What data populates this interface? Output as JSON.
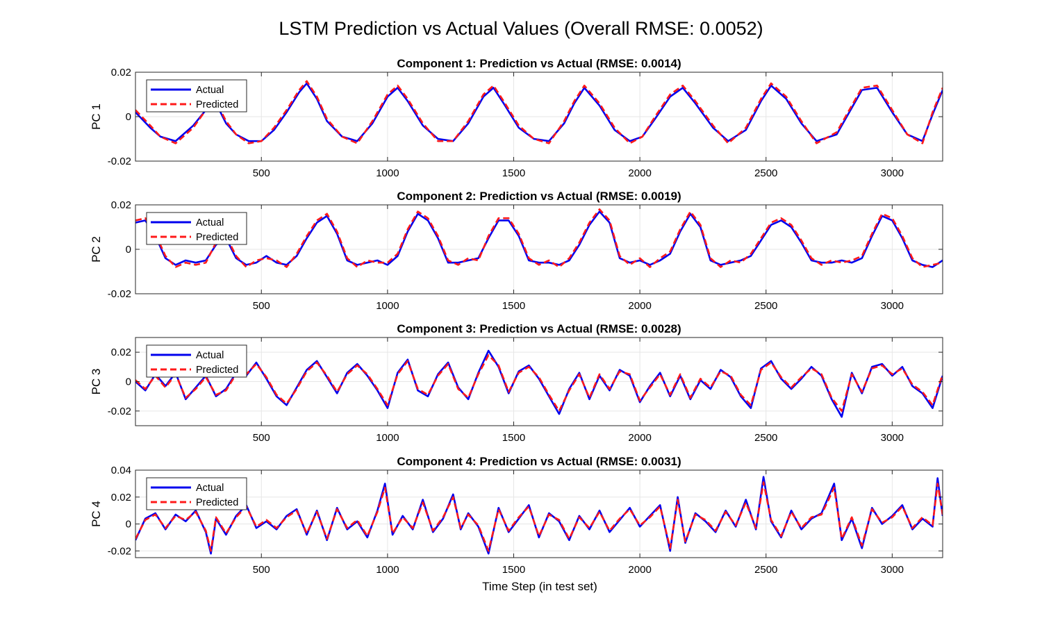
{
  "figure": {
    "title": "LSTM Prediction vs Actual Values (Overall RMSE: 0.0052)",
    "xlabel": "Time Step (in test set)"
  },
  "colors": {
    "actual": "#0000ee",
    "predicted": "#ff1a1a",
    "grid": "#e6e6e6",
    "axes": "#262626"
  },
  "chart_data": [
    {
      "type": "line",
      "title": "Component 1: Prediction vs Actual (RMSE: 0.0014)",
      "ylabel": "PC 1",
      "xlim": [
        1,
        3200
      ],
      "ylim": [
        -0.02,
        0.02
      ],
      "xticks": [
        500,
        1000,
        1500,
        2000,
        2500,
        3000
      ],
      "xtick_labels": [
        "500",
        "1000",
        "1500",
        "2000",
        "2500",
        "3000"
      ],
      "yticks": [
        -0.02,
        0,
        0.02
      ],
      "ytick_labels": [
        "-0.02",
        "0",
        "0.02"
      ],
      "grid": true,
      "legend": "top-left",
      "x": [
        1,
        60,
        100,
        160,
        230,
        280,
        320,
        360,
        400,
        450,
        500,
        550,
        600,
        650,
        680,
        720,
        760,
        820,
        880,
        940,
        1000,
        1040,
        1080,
        1140,
        1200,
        1260,
        1320,
        1380,
        1420,
        1460,
        1520,
        1580,
        1640,
        1700,
        1740,
        1780,
        1840,
        1900,
        1960,
        2010,
        2060,
        2120,
        2170,
        2220,
        2290,
        2350,
        2420,
        2480,
        2520,
        2580,
        2640,
        2700,
        2780,
        2840,
        2880,
        2940,
        3000,
        3060,
        3120,
        3160,
        3200
      ],
      "series": [
        {
          "name": "Actual",
          "values": [
            0.002,
            -0.005,
            -0.009,
            -0.011,
            -0.004,
            0.003,
            0.006,
            -0.003,
            -0.008,
            -0.011,
            -0.011,
            -0.006,
            0.002,
            0.011,
            0.015,
            0.008,
            -0.002,
            -0.009,
            -0.011,
            -0.003,
            0.009,
            0.013,
            0.007,
            -0.004,
            -0.01,
            -0.011,
            -0.003,
            0.009,
            0.013,
            0.006,
            -0.005,
            -0.01,
            -0.011,
            -0.003,
            0.006,
            0.013,
            0.005,
            -0.006,
            -0.011,
            -0.009,
            -0.001,
            0.009,
            0.013,
            0.006,
            -0.005,
            -0.011,
            -0.006,
            0.007,
            0.014,
            0.008,
            -0.003,
            -0.011,
            -0.008,
            0.004,
            0.012,
            0.013,
            0.002,
            -0.008,
            -0.011,
            0.001,
            0.012
          ]
        },
        {
          "name": "Predicted",
          "values": [
            0.003,
            -0.004,
            -0.009,
            -0.012,
            -0.005,
            0.003,
            0.007,
            -0.002,
            -0.008,
            -0.012,
            -0.011,
            -0.005,
            0.003,
            0.012,
            0.016,
            0.009,
            -0.001,
            -0.009,
            -0.012,
            -0.002,
            0.01,
            0.014,
            0.008,
            -0.003,
            -0.011,
            -0.011,
            -0.002,
            0.01,
            0.014,
            0.007,
            -0.004,
            -0.01,
            -0.012,
            -0.002,
            0.007,
            0.014,
            0.006,
            -0.005,
            -0.012,
            -0.009,
            0.0,
            0.01,
            0.014,
            0.007,
            -0.004,
            -0.012,
            -0.005,
            0.008,
            0.015,
            0.009,
            -0.002,
            -0.012,
            -0.007,
            0.005,
            0.013,
            0.014,
            0.003,
            -0.008,
            -0.012,
            0.002,
            0.013
          ]
        }
      ]
    },
    {
      "type": "line",
      "title": "Component 2: Prediction vs Actual (RMSE: 0.0019)",
      "ylabel": "PC 2",
      "xlim": [
        1,
        3200
      ],
      "ylim": [
        -0.02,
        0.02
      ],
      "xticks": [
        500,
        1000,
        1500,
        2000,
        2500,
        3000
      ],
      "xtick_labels": [
        "500",
        "1000",
        "1500",
        "2000",
        "2500",
        "3000"
      ],
      "yticks": [
        -0.02,
        0,
        0.02
      ],
      "ytick_labels": [
        "-0.02",
        "0",
        "0.02"
      ],
      "grid": true,
      "legend": "top-left",
      "x": [
        1,
        40,
        80,
        120,
        160,
        200,
        240,
        280,
        320,
        360,
        400,
        440,
        480,
        520,
        560,
        600,
        640,
        680,
        720,
        760,
        800,
        840,
        880,
        920,
        960,
        1000,
        1040,
        1080,
        1120,
        1160,
        1200,
        1240,
        1280,
        1320,
        1360,
        1400,
        1440,
        1480,
        1520,
        1560,
        1600,
        1640,
        1680,
        1720,
        1760,
        1800,
        1840,
        1880,
        1920,
        1960,
        2000,
        2040,
        2080,
        2120,
        2160,
        2200,
        2240,
        2280,
        2320,
        2360,
        2400,
        2440,
        2480,
        2520,
        2560,
        2600,
        2640,
        2680,
        2720,
        2760,
        2800,
        2840,
        2880,
        2920,
        2960,
        3000,
        3040,
        3080,
        3120,
        3160,
        3200
      ],
      "series": [
        {
          "name": "Actual",
          "values": [
            0.012,
            0.013,
            0.006,
            -0.004,
            -0.007,
            -0.005,
            -0.006,
            -0.005,
            0.002,
            0.005,
            -0.004,
            -0.007,
            -0.006,
            -0.003,
            -0.006,
            -0.007,
            -0.003,
            0.005,
            0.012,
            0.015,
            0.007,
            -0.005,
            -0.007,
            -0.006,
            -0.005,
            -0.007,
            -0.003,
            0.008,
            0.016,
            0.013,
            0.005,
            -0.006,
            -0.006,
            -0.005,
            -0.004,
            0.005,
            0.013,
            0.013,
            0.006,
            -0.005,
            -0.006,
            -0.006,
            -0.007,
            -0.005,
            0.002,
            0.011,
            0.017,
            0.012,
            -0.004,
            -0.006,
            -0.005,
            -0.007,
            -0.005,
            -0.002,
            0.008,
            0.016,
            0.01,
            -0.005,
            -0.007,
            -0.006,
            -0.005,
            -0.003,
            0.004,
            0.011,
            0.013,
            0.01,
            0.003,
            -0.005,
            -0.006,
            -0.006,
            -0.005,
            -0.006,
            -0.004,
            0.006,
            0.015,
            0.013,
            0.005,
            -0.005,
            -0.007,
            -0.008,
            -0.005
          ]
        },
        {
          "name": "Predicted",
          "values": [
            0.013,
            0.014,
            0.007,
            -0.003,
            -0.008,
            -0.006,
            -0.007,
            -0.006,
            0.003,
            0.006,
            -0.003,
            -0.008,
            -0.005,
            -0.004,
            -0.005,
            -0.008,
            -0.002,
            0.006,
            0.013,
            0.016,
            0.008,
            -0.004,
            -0.008,
            -0.005,
            -0.006,
            -0.006,
            -0.002,
            0.009,
            0.017,
            0.014,
            0.006,
            -0.005,
            -0.007,
            -0.004,
            -0.005,
            0.006,
            0.014,
            0.014,
            0.007,
            -0.004,
            -0.007,
            -0.005,
            -0.008,
            -0.004,
            0.003,
            0.012,
            0.018,
            0.013,
            -0.003,
            -0.007,
            -0.004,
            -0.008,
            -0.004,
            -0.001,
            0.009,
            0.017,
            0.011,
            -0.004,
            -0.008,
            -0.005,
            -0.006,
            -0.002,
            0.005,
            0.012,
            0.014,
            0.011,
            0.004,
            -0.004,
            -0.007,
            -0.005,
            -0.006,
            -0.005,
            -0.003,
            0.007,
            0.016,
            0.014,
            0.006,
            -0.004,
            -0.008,
            -0.007,
            -0.006
          ]
        }
      ]
    },
    {
      "type": "line",
      "title": "Component 3: Prediction vs Actual (RMSE: 0.0028)",
      "ylabel": "PC 3",
      "xlim": [
        1,
        3200
      ],
      "ylim": [
        -0.03,
        0.03
      ],
      "xticks": [
        500,
        1000,
        1500,
        2000,
        2500,
        3000
      ],
      "xtick_labels": [
        "500",
        "1000",
        "1500",
        "2000",
        "2500",
        "3000"
      ],
      "yticks": [
        -0.02,
        0,
        0.02
      ],
      "ytick_labels": [
        "-0.02",
        "0",
        "0.02"
      ],
      "grid": true,
      "legend": "top-left",
      "x": [
        1,
        40,
        80,
        120,
        160,
        200,
        240,
        280,
        320,
        360,
        400,
        440,
        480,
        520,
        560,
        600,
        640,
        680,
        720,
        760,
        800,
        840,
        880,
        920,
        960,
        1000,
        1040,
        1080,
        1120,
        1160,
        1200,
        1240,
        1280,
        1320,
        1360,
        1400,
        1440,
        1480,
        1520,
        1560,
        1600,
        1640,
        1680,
        1720,
        1760,
        1800,
        1840,
        1880,
        1920,
        1960,
        2000,
        2040,
        2080,
        2120,
        2160,
        2200,
        2240,
        2280,
        2320,
        2360,
        2400,
        2440,
        2480,
        2520,
        2560,
        2600,
        2640,
        2680,
        2720,
        2760,
        2800,
        2840,
        2880,
        2920,
        2960,
        3000,
        3040,
        3080,
        3120,
        3160,
        3200
      ],
      "series": [
        {
          "name": "Actual",
          "values": [
            0.0,
            -0.006,
            0.005,
            -0.003,
            0.006,
            -0.012,
            -0.004,
            0.004,
            -0.01,
            -0.005,
            0.006,
            0.004,
            0.013,
            0.002,
            -0.01,
            -0.016,
            -0.004,
            0.008,
            0.014,
            0.003,
            -0.008,
            0.006,
            0.012,
            0.004,
            -0.006,
            -0.018,
            0.006,
            0.015,
            -0.006,
            -0.01,
            0.005,
            0.013,
            -0.004,
            -0.012,
            0.006,
            0.021,
            0.01,
            -0.008,
            0.007,
            0.011,
            0.002,
            -0.01,
            -0.022,
            -0.005,
            0.006,
            -0.012,
            0.004,
            -0.006,
            0.008,
            0.004,
            -0.014,
            -0.003,
            0.006,
            -0.01,
            0.004,
            -0.012,
            0.001,
            -0.005,
            0.008,
            0.003,
            -0.01,
            -0.018,
            0.009,
            0.014,
            0.002,
            -0.005,
            0.002,
            0.01,
            0.004,
            -0.012,
            -0.024,
            0.006,
            -0.008,
            0.01,
            0.012,
            0.004,
            0.01,
            -0.003,
            -0.008,
            -0.018,
            0.004
          ]
        },
        {
          "name": "Predicted",
          "values": [
            0.001,
            -0.005,
            0.004,
            -0.004,
            0.005,
            -0.011,
            -0.005,
            0.003,
            -0.009,
            -0.006,
            0.005,
            0.005,
            0.012,
            0.003,
            -0.009,
            -0.015,
            -0.005,
            0.007,
            0.013,
            0.004,
            -0.007,
            0.005,
            0.011,
            0.005,
            -0.005,
            -0.016,
            0.005,
            0.014,
            -0.005,
            -0.009,
            0.004,
            0.012,
            -0.005,
            -0.011,
            0.005,
            0.018,
            0.011,
            -0.007,
            0.006,
            0.01,
            0.003,
            -0.009,
            -0.02,
            -0.006,
            0.005,
            -0.011,
            0.005,
            -0.005,
            0.007,
            0.005,
            -0.013,
            -0.004,
            0.005,
            -0.009,
            0.005,
            -0.011,
            0.002,
            -0.004,
            0.007,
            0.004,
            -0.009,
            -0.016,
            0.008,
            0.013,
            0.003,
            -0.004,
            0.003,
            0.009,
            0.005,
            -0.011,
            -0.02,
            0.005,
            -0.007,
            0.009,
            0.011,
            0.005,
            0.009,
            -0.002,
            -0.007,
            -0.016,
            0.005
          ]
        }
      ]
    },
    {
      "type": "line",
      "title": "Component 4: Prediction vs Actual (RMSE: 0.0031)",
      "ylabel": "PC 4",
      "xlim": [
        1,
        3200
      ],
      "ylim": [
        -0.025,
        0.04
      ],
      "xticks": [
        500,
        1000,
        1500,
        2000,
        2500,
        3000
      ],
      "xtick_labels": [
        "500",
        "1000",
        "1500",
        "2000",
        "2500",
        "3000"
      ],
      "yticks": [
        -0.02,
        0,
        0.02,
        0.04
      ],
      "ytick_labels": [
        "-0.02",
        "0",
        "0.02",
        "0.04"
      ],
      "grid": true,
      "legend": "top-left",
      "x": [
        1,
        40,
        80,
        120,
        160,
        200,
        240,
        280,
        300,
        320,
        360,
        400,
        440,
        480,
        520,
        560,
        600,
        640,
        680,
        720,
        760,
        800,
        840,
        880,
        920,
        960,
        990,
        1020,
        1060,
        1100,
        1140,
        1180,
        1220,
        1260,
        1290,
        1320,
        1360,
        1400,
        1440,
        1480,
        1520,
        1560,
        1600,
        1640,
        1680,
        1720,
        1760,
        1800,
        1840,
        1880,
        1920,
        1960,
        2000,
        2040,
        2080,
        2120,
        2150,
        2180,
        2220,
        2260,
        2300,
        2340,
        2380,
        2420,
        2460,
        2490,
        2520,
        2560,
        2600,
        2640,
        2680,
        2720,
        2770,
        2800,
        2840,
        2880,
        2920,
        2960,
        3000,
        3040,
        3080,
        3120,
        3160,
        3180,
        3200
      ],
      "series": [
        {
          "name": "Actual",
          "values": [
            -0.012,
            0.004,
            0.008,
            -0.004,
            0.007,
            0.002,
            0.01,
            -0.006,
            -0.022,
            0.004,
            -0.008,
            0.006,
            0.014,
            -0.003,
            0.002,
            -0.004,
            0.006,
            0.011,
            -0.008,
            0.01,
            -0.012,
            0.012,
            -0.004,
            0.002,
            -0.01,
            0.01,
            0.03,
            -0.008,
            0.006,
            -0.004,
            0.018,
            -0.006,
            0.004,
            0.022,
            -0.004,
            0.008,
            -0.002,
            -0.022,
            0.012,
            -0.006,
            0.004,
            0.014,
            -0.01,
            0.008,
            0.002,
            -0.012,
            0.006,
            -0.004,
            0.01,
            -0.006,
            0.003,
            0.012,
            -0.002,
            0.006,
            0.014,
            -0.02,
            0.02,
            -0.014,
            0.008,
            0.002,
            -0.006,
            0.01,
            -0.002,
            0.018,
            -0.004,
            0.035,
            0.002,
            -0.01,
            0.01,
            -0.004,
            0.004,
            0.008,
            0.03,
            -0.012,
            0.004,
            -0.018,
            0.012,
            0.0,
            0.006,
            0.014,
            -0.004,
            0.004,
            -0.002,
            0.034,
            0.006
          ]
        },
        {
          "name": "Predicted",
          "values": [
            -0.011,
            0.003,
            0.007,
            -0.003,
            0.006,
            0.003,
            0.009,
            -0.005,
            -0.02,
            0.005,
            -0.007,
            0.005,
            0.013,
            -0.002,
            0.003,
            -0.003,
            0.005,
            0.01,
            -0.007,
            0.009,
            -0.011,
            0.011,
            -0.003,
            0.003,
            -0.009,
            0.009,
            0.027,
            -0.007,
            0.005,
            -0.003,
            0.016,
            -0.005,
            0.005,
            0.02,
            -0.003,
            0.007,
            -0.001,
            -0.02,
            0.011,
            -0.005,
            0.005,
            0.013,
            -0.009,
            0.007,
            0.003,
            -0.011,
            0.005,
            -0.003,
            0.009,
            -0.005,
            0.004,
            0.011,
            -0.001,
            0.005,
            0.013,
            -0.018,
            0.018,
            -0.013,
            0.007,
            0.003,
            -0.005,
            0.009,
            -0.001,
            0.016,
            -0.003,
            0.031,
            0.003,
            -0.009,
            0.009,
            -0.003,
            0.005,
            0.007,
            0.027,
            -0.011,
            0.005,
            -0.016,
            0.011,
            0.001,
            0.005,
            0.013,
            -0.003,
            0.005,
            -0.001,
            0.03,
            0.007
          ]
        }
      ]
    }
  ]
}
